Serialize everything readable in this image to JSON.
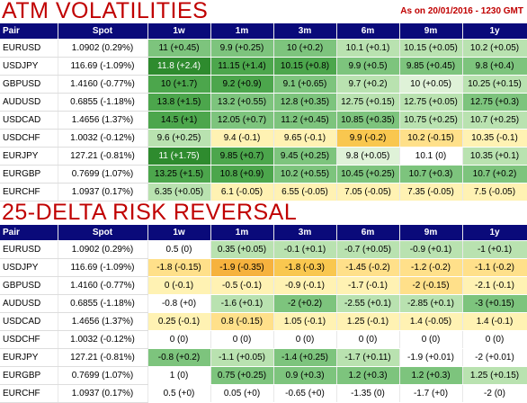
{
  "atm": {
    "title": "ATM VOLATILITIES",
    "as_of": "As on 20/01/2016 - 1230 GMT",
    "rows": [
      {
        "pair": "EURUSD",
        "spot": "1.0902 (0.29%)",
        "cells": [
          {
            "t": "11 (+0.45)",
            "c": "g3"
          },
          {
            "t": "9.9 (+0.25)",
            "c": "g3"
          },
          {
            "t": "10 (+0.2)",
            "c": "g3"
          },
          {
            "t": "10.1 (+0.1)",
            "c": "g4"
          },
          {
            "t": "10.15 (+0.05)",
            "c": "g4"
          },
          {
            "t": "10.2 (+0.05)",
            "c": "g4"
          }
        ]
      },
      {
        "pair": "USDJPY",
        "spot": "116.69 (-1.09%)",
        "cells": [
          {
            "t": "11.8 (+2.4)",
            "c": "g1"
          },
          {
            "t": "11.15 (+1.4)",
            "c": "g2"
          },
          {
            "t": "10.15 (+0.8)",
            "c": "g2"
          },
          {
            "t": "9.9 (+0.5)",
            "c": "g3"
          },
          {
            "t": "9.85 (+0.45)",
            "c": "g3"
          },
          {
            "t": "9.8 (+0.4)",
            "c": "g3"
          }
        ]
      },
      {
        "pair": "GBPUSD",
        "spot": "1.4160 (-0.77%)",
        "cells": [
          {
            "t": "10 (+1.7)",
            "c": "g2"
          },
          {
            "t": "9.2 (+0.9)",
            "c": "g2"
          },
          {
            "t": "9.1 (+0.65)",
            "c": "g3"
          },
          {
            "t": "9.7 (+0.2)",
            "c": "g4"
          },
          {
            "t": "10 (+0.05)",
            "c": "g5"
          },
          {
            "t": "10.25 (+0.15)",
            "c": "g4"
          }
        ]
      },
      {
        "pair": "AUDUSD",
        "spot": "0.6855 (-1.18%)",
        "cells": [
          {
            "t": "13.8 (+1.5)",
            "c": "g2"
          },
          {
            "t": "13.2 (+0.55)",
            "c": "g3"
          },
          {
            "t": "12.8 (+0.35)",
            "c": "g3"
          },
          {
            "t": "12.75 (+0.15)",
            "c": "g4"
          },
          {
            "t": "12.75 (+0.05)",
            "c": "g4"
          },
          {
            "t": "12.75 (+0.3)",
            "c": "g3"
          }
        ]
      },
      {
        "pair": "USDCAD",
        "spot": "1.4656 (1.37%)",
        "cells": [
          {
            "t": "14.5 (+1)",
            "c": "g2"
          },
          {
            "t": "12.05 (+0.7)",
            "c": "g3"
          },
          {
            "t": "11.2 (+0.45)",
            "c": "g3"
          },
          {
            "t": "10.85 (+0.35)",
            "c": "g3"
          },
          {
            "t": "10.75 (+0.25)",
            "c": "g4"
          },
          {
            "t": "10.7 (+0.25)",
            "c": "g4"
          }
        ]
      },
      {
        "pair": "USDCHF",
        "spot": "1.0032 (-0.12%)",
        "cells": [
          {
            "t": "9.6 (+0.25)",
            "c": "g4"
          },
          {
            "t": "9.4 (-0.1)",
            "c": "y1"
          },
          {
            "t": "9.65 (-0.1)",
            "c": "y1"
          },
          {
            "t": "9.9 (-0.2)",
            "c": "y3"
          },
          {
            "t": "10.2 (-0.15)",
            "c": "y2"
          },
          {
            "t": "10.35 (-0.1)",
            "c": "y1"
          }
        ]
      },
      {
        "pair": "EURJPY",
        "spot": "127.21 (-0.81%)",
        "cells": [
          {
            "t": "11 (+1.75)",
            "c": "g1"
          },
          {
            "t": "9.85 (+0.7)",
            "c": "g2"
          },
          {
            "t": "9.45 (+0.25)",
            "c": "g3"
          },
          {
            "t": "9.8 (+0.05)",
            "c": "g5"
          },
          {
            "t": "10.1 (0)",
            "c": "w0"
          },
          {
            "t": "10.35 (+0.1)",
            "c": "g4"
          }
        ]
      },
      {
        "pair": "EURGBP",
        "spot": "0.7699 (1.07%)",
        "cells": [
          {
            "t": "13.25 (+1.5)",
            "c": "g2"
          },
          {
            "t": "10.8 (+0.9)",
            "c": "g2"
          },
          {
            "t": "10.2 (+0.55)",
            "c": "g3"
          },
          {
            "t": "10.45 (+0.25)",
            "c": "g3"
          },
          {
            "t": "10.7 (+0.3)",
            "c": "g3"
          },
          {
            "t": "10.7 (+0.2)",
            "c": "g3"
          }
        ]
      },
      {
        "pair": "EURCHF",
        "spot": "1.0937 (0.17%)",
        "cells": [
          {
            "t": "6.35 (+0.05)",
            "c": "g4"
          },
          {
            "t": "6.1 (-0.05)",
            "c": "y1"
          },
          {
            "t": "6.55 (-0.05)",
            "c": "y1"
          },
          {
            "t": "7.05 (-0.05)",
            "c": "y1"
          },
          {
            "t": "7.35 (-0.05)",
            "c": "y1"
          },
          {
            "t": "7.5 (-0.05)",
            "c": "y1"
          }
        ]
      }
    ]
  },
  "rr": {
    "title": "25-DELTA RISK REVERSAL",
    "rows": [
      {
        "pair": "EURUSD",
        "spot": "1.0902 (0.29%)",
        "cells": [
          {
            "t": "0.5 (0)",
            "c": "w0"
          },
          {
            "t": "0.35 (+0.05)",
            "c": "g4"
          },
          {
            "t": "-0.1 (+0.1)",
            "c": "g4"
          },
          {
            "t": "-0.7 (+0.05)",
            "c": "g4"
          },
          {
            "t": "-0.9 (+0.1)",
            "c": "g4"
          },
          {
            "t": "-1 (+0.1)",
            "c": "g4"
          }
        ]
      },
      {
        "pair": "USDJPY",
        "spot": "116.69 (-1.09%)",
        "cells": [
          {
            "t": "-1.8 (-0.15)",
            "c": "y2"
          },
          {
            "t": "-1.9 (-0.35)",
            "c": "y4"
          },
          {
            "t": "-1.8 (-0.3)",
            "c": "y3"
          },
          {
            "t": "-1.45 (-0.2)",
            "c": "y2"
          },
          {
            "t": "-1.2 (-0.2)",
            "c": "y2"
          },
          {
            "t": "-1.1 (-0.2)",
            "c": "y2"
          }
        ]
      },
      {
        "pair": "GBPUSD",
        "spot": "1.4160 (-0.77%)",
        "cells": [
          {
            "t": "0 (-0.1)",
            "c": "y1"
          },
          {
            "t": "-0.5 (-0.1)",
            "c": "y1"
          },
          {
            "t": "-0.9 (-0.1)",
            "c": "y1"
          },
          {
            "t": "-1.7 (-0.1)",
            "c": "y1"
          },
          {
            "t": "-2 (-0.15)",
            "c": "y2"
          },
          {
            "t": "-2.1 (-0.1)",
            "c": "y1"
          }
        ]
      },
      {
        "pair": "AUDUSD",
        "spot": "0.6855 (-1.18%)",
        "cells": [
          {
            "t": "-0.8 (+0)",
            "c": "w0"
          },
          {
            "t": "-1.6 (+0.1)",
            "c": "g4"
          },
          {
            "t": "-2 (+0.2)",
            "c": "g3"
          },
          {
            "t": "-2.55 (+0.1)",
            "c": "g4"
          },
          {
            "t": "-2.85 (+0.1)",
            "c": "g4"
          },
          {
            "t": "-3 (+0.15)",
            "c": "g3"
          }
        ]
      },
      {
        "pair": "USDCAD",
        "spot": "1.4656 (1.37%)",
        "cells": [
          {
            "t": "0.25 (-0.1)",
            "c": "y1"
          },
          {
            "t": "0.8 (-0.15)",
            "c": "y2"
          },
          {
            "t": "1.05 (-0.1)",
            "c": "y1"
          },
          {
            "t": "1.25 (-0.1)",
            "c": "y1"
          },
          {
            "t": "1.4 (-0.05)",
            "c": "y1"
          },
          {
            "t": "1.4 (-0.1)",
            "c": "y1"
          }
        ]
      },
      {
        "pair": "USDCHF",
        "spot": "1.0032 (-0.12%)",
        "cells": [
          {
            "t": "0 (0)",
            "c": "w0"
          },
          {
            "t": "0 (0)",
            "c": "w0"
          },
          {
            "t": "0 (0)",
            "c": "w0"
          },
          {
            "t": "0 (0)",
            "c": "w0"
          },
          {
            "t": "0 (0)",
            "c": "w0"
          },
          {
            "t": "0 (0)",
            "c": "w0"
          }
        ]
      },
      {
        "pair": "EURJPY",
        "spot": "127.21 (-0.81%)",
        "cells": [
          {
            "t": "-0.8 (+0.2)",
            "c": "g3"
          },
          {
            "t": "-1.1 (+0.05)",
            "c": "g4"
          },
          {
            "t": "-1.4 (+0.25)",
            "c": "g3"
          },
          {
            "t": "-1.7 (+0.11)",
            "c": "g4"
          },
          {
            "t": "-1.9 (+0.01)",
            "c": "w0"
          },
          {
            "t": "-2 (+0.01)",
            "c": "w0"
          }
        ]
      },
      {
        "pair": "EURGBP",
        "spot": "0.7699 (1.07%)",
        "cells": [
          {
            "t": "1 (0)",
            "c": "w0"
          },
          {
            "t": "0.75 (+0.25)",
            "c": "g3"
          },
          {
            "t": "0.9 (+0.3)",
            "c": "g3"
          },
          {
            "t": "1.2 (+0.3)",
            "c": "g3"
          },
          {
            "t": "1.2 (+0.3)",
            "c": "g3"
          },
          {
            "t": "1.25 (+0.15)",
            "c": "g4"
          }
        ]
      },
      {
        "pair": "EURCHF",
        "spot": "1.0937 (0.17%)",
        "cells": [
          {
            "t": "0.5 (+0)",
            "c": "w0"
          },
          {
            "t": "0.05 (+0)",
            "c": "w0"
          },
          {
            "t": "-0.65 (+0)",
            "c": "w0"
          },
          {
            "t": "-1.35 (0)",
            "c": "w0"
          },
          {
            "t": "-1.7 (+0)",
            "c": "w0"
          },
          {
            "t": "-2 (0)",
            "c": "w0"
          }
        ]
      }
    ]
  },
  "columns": [
    "Pair",
    "Spot",
    "1w",
    "1m",
    "3m",
    "6m",
    "9m",
    "1y"
  ],
  "colors": {
    "title_red": "#c00000",
    "header_blue": "#0a0a7a",
    "green_strong": "#2e8b2e",
    "green_light": "#b9e2b0",
    "yellow": "#ffe08a"
  }
}
